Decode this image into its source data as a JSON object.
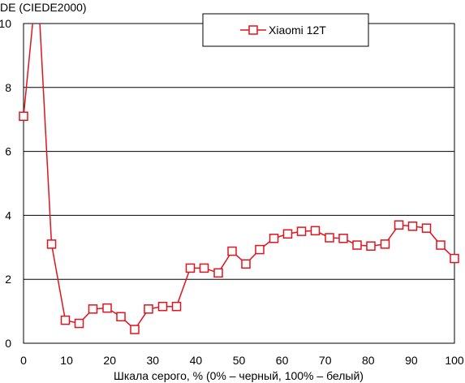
{
  "chart_data": {
    "type": "line",
    "title": "",
    "ylabel": "DE (CIEDE2000)",
    "xlabel": "Шкала серого, % (0% – черный, 100% – белый)",
    "xlim": [
      0,
      100
    ],
    "ylim": [
      0,
      10
    ],
    "x_ticks": [
      0,
      10,
      20,
      30,
      40,
      50,
      60,
      70,
      80,
      90,
      100
    ],
    "y_ticks": [
      0,
      2,
      4,
      6,
      8,
      10
    ],
    "grid": "horizontal",
    "legend_position": "top-right",
    "series": [
      {
        "name": "Xiaomi 12T",
        "color": "#e0141e",
        "marker": "square-open",
        "x": [
          0,
          3.2,
          6.5,
          9.7,
          12.9,
          16.1,
          19.4,
          22.6,
          25.8,
          29.0,
          32.3,
          35.5,
          38.7,
          41.9,
          45.2,
          48.4,
          51.6,
          54.8,
          58.1,
          61.3,
          64.5,
          67.7,
          71.0,
          74.2,
          77.4,
          80.6,
          83.9,
          87.1,
          90.3,
          93.5,
          96.8,
          100
        ],
        "y": [
          7.1,
          11.5,
          3.1,
          0.72,
          0.62,
          1.07,
          1.1,
          0.83,
          0.43,
          1.07,
          1.15,
          1.15,
          2.35,
          2.35,
          2.2,
          2.88,
          2.48,
          2.93,
          3.28,
          3.42,
          3.5,
          3.52,
          3.3,
          3.28,
          3.07,
          3.04,
          3.1,
          3.7,
          3.66,
          3.6,
          3.07,
          2.65
        ]
      }
    ]
  }
}
